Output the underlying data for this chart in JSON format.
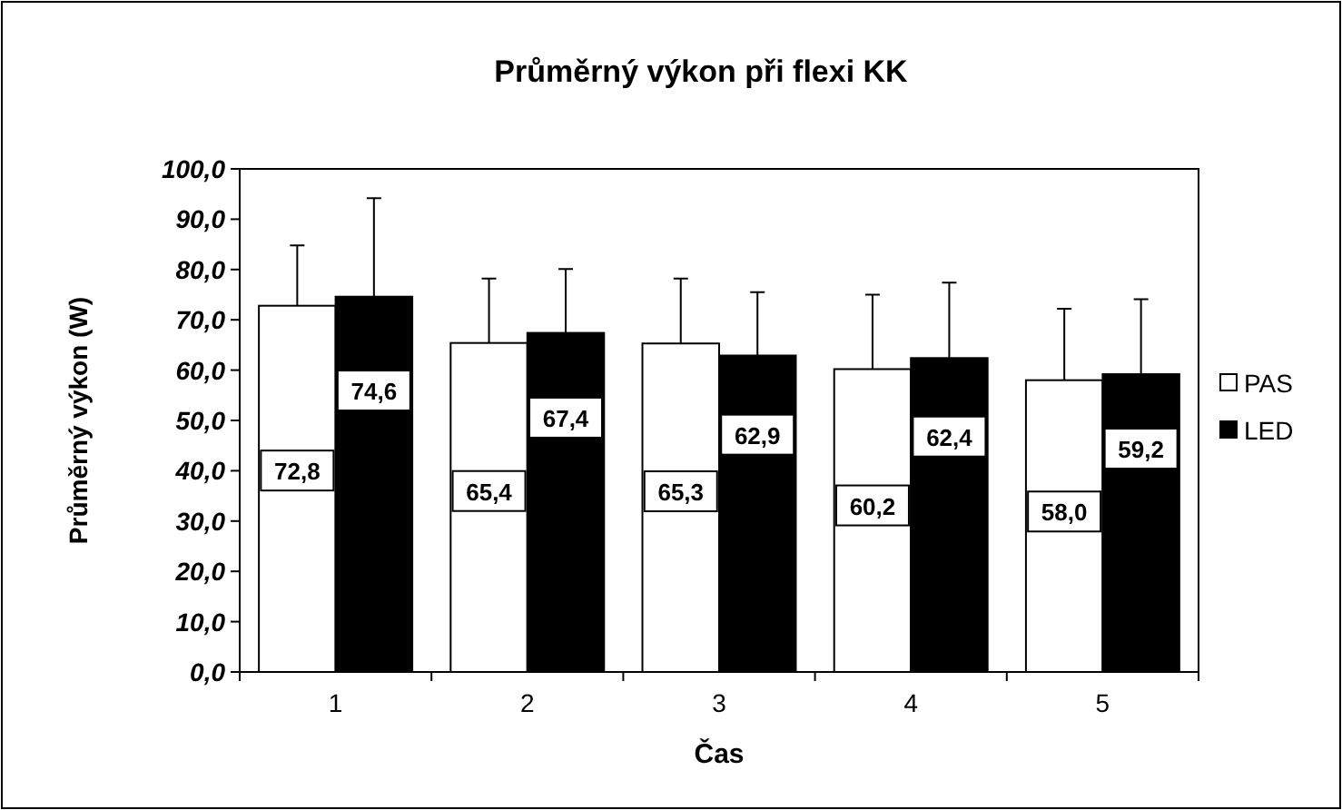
{
  "chart_data": {
    "type": "bar",
    "title": "Průměrný výkon při flexi KK",
    "xlabel": "Čas",
    "ylabel": "Průměrný výkon (W)",
    "categories": [
      "1",
      "2",
      "3",
      "4",
      "5"
    ],
    "series": [
      {
        "name": "PAS",
        "color": "#ffffff",
        "values": [
          72.8,
          65.4,
          65.3,
          60.2,
          58.0
        ],
        "errors": [
          [
            72.8,
            84.8
          ],
          [
            65.4,
            78.2
          ],
          [
            65.3,
            78.2
          ],
          [
            60.2,
            75.0
          ],
          [
            58.0,
            72.2
          ]
        ],
        "value_labels": [
          "72,8",
          "65,4",
          "65,3",
          "60,2",
          "58,0"
        ]
      },
      {
        "name": "LED",
        "color": "#000000",
        "values": [
          74.6,
          67.4,
          62.9,
          62.4,
          59.2
        ],
        "errors": [
          [
            74.6,
            94.2
          ],
          [
            67.4,
            80.1
          ],
          [
            62.9,
            75.5
          ],
          [
            62.4,
            77.4
          ],
          [
            59.2,
            74.1
          ]
        ],
        "value_labels": [
          "74,6",
          "67,4",
          "62,9",
          "62,4",
          "59,2"
        ]
      }
    ],
    "ylim": [
      0,
      100
    ],
    "yticks": [
      {
        "value": 0,
        "label": "0,0"
      },
      {
        "value": 10,
        "label": "10,0"
      },
      {
        "value": 20,
        "label": "20,0"
      },
      {
        "value": 30,
        "label": "30,0"
      },
      {
        "value": 40,
        "label": "40,0"
      },
      {
        "value": 50,
        "label": "50,0"
      },
      {
        "value": 60,
        "label": "60,0"
      },
      {
        "value": 70,
        "label": "70,0"
      },
      {
        "value": 80,
        "label": "80,0"
      },
      {
        "value": 90,
        "label": "90,0"
      },
      {
        "value": 100,
        "label": "100,0"
      }
    ],
    "grid": false,
    "legend": "right"
  }
}
